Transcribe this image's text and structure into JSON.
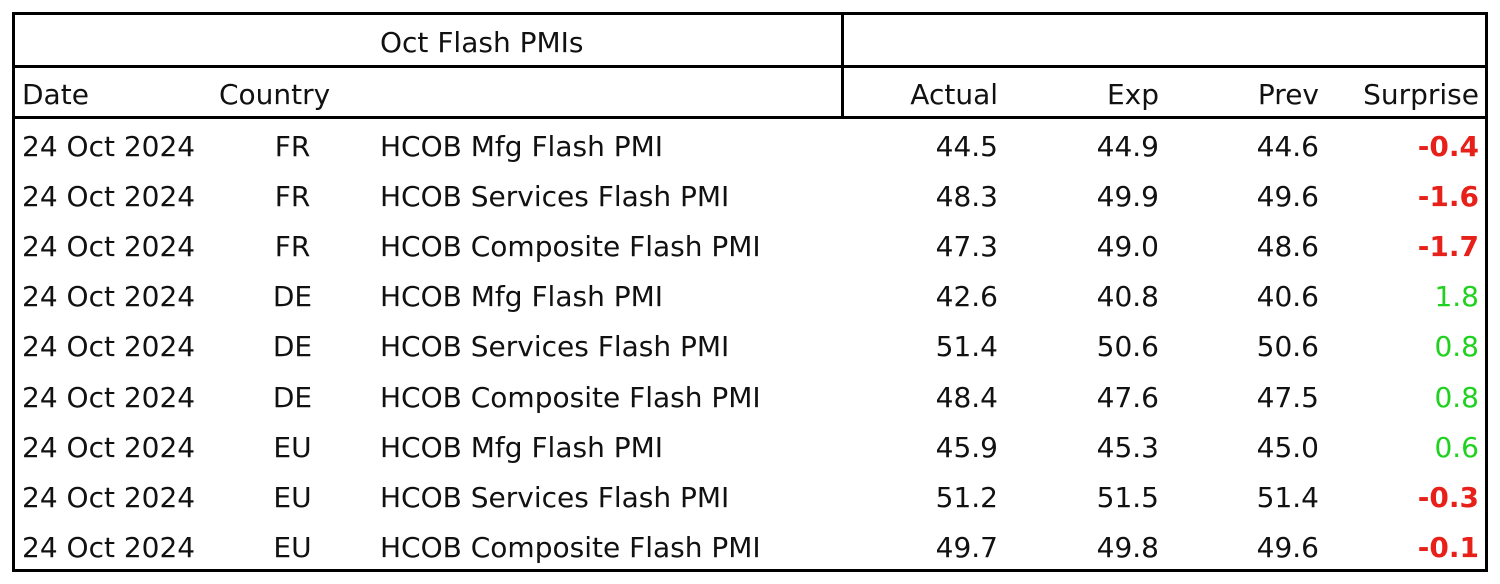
{
  "table": {
    "title": "Oct Flash PMIs",
    "headers": {
      "date": "Date",
      "country": "Country",
      "actual": "Actual",
      "exp": "Exp",
      "prev": "Prev",
      "surprise": "Surprise"
    },
    "rows": [
      {
        "date": "24 Oct 2024",
        "country": "FR",
        "indicator": "HCOB Mfg Flash PMI",
        "actual": "44.5",
        "exp": "44.9",
        "prev": "44.6",
        "surprise": "-0.4",
        "surprise_sign": "negative"
      },
      {
        "date": "24 Oct 2024",
        "country": "FR",
        "indicator": "HCOB Services Flash PMI",
        "actual": "48.3",
        "exp": "49.9",
        "prev": "49.6",
        "surprise": "-1.6",
        "surprise_sign": "negative"
      },
      {
        "date": "24 Oct 2024",
        "country": "FR",
        "indicator": "HCOB Composite Flash PMI",
        "actual": "47.3",
        "exp": "49.0",
        "prev": "48.6",
        "surprise": "-1.7",
        "surprise_sign": "negative"
      },
      {
        "date": "24 Oct 2024",
        "country": "DE",
        "indicator": "HCOB Mfg Flash PMI",
        "actual": "42.6",
        "exp": "40.8",
        "prev": "40.6",
        "surprise": "1.8",
        "surprise_sign": "positive"
      },
      {
        "date": "24 Oct 2024",
        "country": "DE",
        "indicator": "HCOB Services Flash PMI",
        "actual": "51.4",
        "exp": "50.6",
        "prev": "50.6",
        "surprise": "0.8",
        "surprise_sign": "positive"
      },
      {
        "date": "24 Oct 2024",
        "country": "DE",
        "indicator": "HCOB Composite Flash PMI",
        "actual": "48.4",
        "exp": "47.6",
        "prev": "47.5",
        "surprise": "0.8",
        "surprise_sign": "positive"
      },
      {
        "date": "24 Oct 2024",
        "country": "EU",
        "indicator": "HCOB Mfg Flash PMI",
        "actual": "45.9",
        "exp": "45.3",
        "prev": "45.0",
        "surprise": "0.6",
        "surprise_sign": "positive"
      },
      {
        "date": "24 Oct 2024",
        "country": "EU",
        "indicator": "HCOB Services Flash PMI",
        "actual": "51.2",
        "exp": "51.5",
        "prev": "51.4",
        "surprise": "-0.3",
        "surprise_sign": "negative"
      },
      {
        "date": "24 Oct 2024",
        "country": "EU",
        "indicator": "HCOB Composite Flash PMI",
        "actual": "49.7",
        "exp": "49.8",
        "prev": "49.6",
        "surprise": "-0.1",
        "surprise_sign": "negative"
      }
    ]
  },
  "colors": {
    "negative": "#e8201a",
    "positive": "#1fd21f",
    "border": "#000000"
  }
}
